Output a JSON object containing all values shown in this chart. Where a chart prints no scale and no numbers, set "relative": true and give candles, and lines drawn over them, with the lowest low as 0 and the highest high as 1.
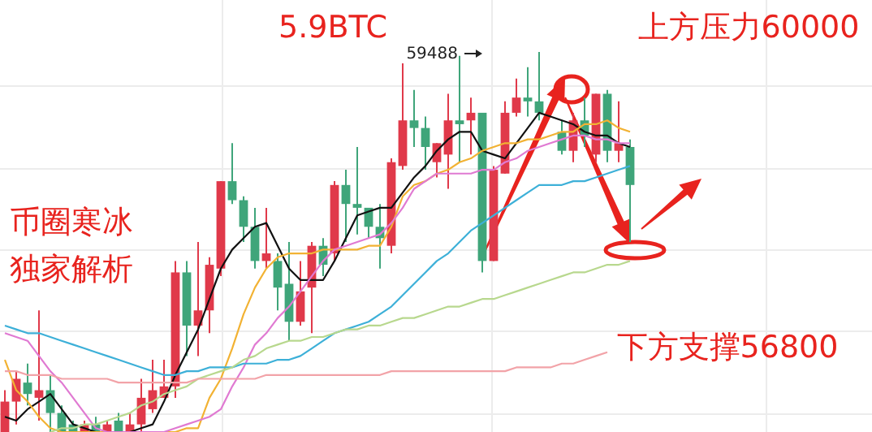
{
  "chart_data": {
    "type": "candlestick",
    "relative": true,
    "grid": true,
    "title": "5.9BTC",
    "annotations": [
      "59488",
      "上方压力60000",
      "币圈寒冰",
      "独家解析",
      "下方支撑56800"
    ],
    "categories": [
      null,
      null,
      null,
      null,
      null,
      null,
      null,
      null,
      null,
      null,
      null,
      null,
      null,
      null,
      null,
      null,
      null,
      null,
      null,
      null,
      null,
      null,
      null,
      null,
      null,
      null,
      null,
      null,
      null,
      null,
      null,
      null,
      null,
      null,
      null,
      null,
      null,
      null,
      null,
      null,
      null,
      null,
      null,
      null,
      null,
      null,
      null,
      null,
      null,
      null,
      null,
      null,
      null,
      null,
      null,
      null
    ],
    "ohlc": [
      [
        0,
        0.11,
        0,
        0.08
      ],
      [
        0.08,
        0.16,
        0.02,
        0.14
      ],
      [
        0.13,
        0.18,
        0.07,
        0.1
      ],
      [
        0.09,
        0.32,
        0.03,
        0.11
      ],
      [
        0.11,
        0.15,
        0,
        0.05
      ],
      [
        0.05,
        0.07,
        0,
        0
      ],
      [
        0.02,
        0.03,
        0,
        0
      ],
      [
        0,
        0.03,
        0,
        0.02
      ],
      [
        0.02,
        0.04,
        0,
        0
      ],
      [
        0,
        0.03,
        0,
        0.02
      ],
      [
        0.03,
        0.05,
        0,
        0
      ],
      [
        0,
        0.05,
        0,
        0.02
      ],
      [
        0.02,
        0.14,
        0,
        0.09
      ],
      [
        0.06,
        0.19,
        0.05,
        0.11
      ],
      [
        0.09,
        0.19,
        0.09,
        0.12
      ],
      [
        0.12,
        0.45,
        0.09,
        0.42
      ],
      [
        0.42,
        0.45,
        0.2,
        0.28
      ],
      [
        0.28,
        0.5,
        0.2,
        0.32
      ],
      [
        0.32,
        0.46,
        0.26,
        0.44
      ],
      [
        0.43,
        0.66,
        0.41,
        0.66
      ],
      [
        0.66,
        0.76,
        0.6,
        0.61
      ],
      [
        0.61,
        0.62,
        0.5,
        0.54
      ],
      [
        0.54,
        0.59,
        0.43,
        0.45
      ],
      [
        0.45,
        0.59,
        0.43,
        0.47
      ],
      [
        0.45,
        0.47,
        0.32,
        0.38
      ],
      [
        0.39,
        0.5,
        0.24,
        0.29
      ],
      [
        0.29,
        0.45,
        0.28,
        0.37
      ],
      [
        0.38,
        0.5,
        0.26,
        0.49
      ],
      [
        0.49,
        0.51,
        0.41,
        0.44
      ],
      [
        0.47,
        0.66,
        0.45,
        0.65
      ],
      [
        0.65,
        0.69,
        0.5,
        0.6
      ],
      [
        0.6,
        0.75,
        0.52,
        0.59
      ],
      [
        0.59,
        0.59,
        0.51,
        0.54
      ],
      [
        0.54,
        0.6,
        0.43,
        0.51
      ],
      [
        0.49,
        0.72,
        0.47,
        0.71
      ],
      [
        0.7,
        0.97,
        0.69,
        0.82
      ],
      [
        0.82,
        0.9,
        0.75,
        0.8
      ],
      [
        0.8,
        0.83,
        0.69,
        0.75
      ],
      [
        0.71,
        0.76,
        0.67,
        0.76
      ],
      [
        0.73,
        0.89,
        0.64,
        0.82
      ],
      [
        0.82,
        0.99,
        0.71,
        0.81
      ],
      [
        0.82,
        0.88,
        0.73,
        0.84
      ],
      [
        0.84,
        0.84,
        0.42,
        0.45
      ],
      [
        0.45,
        0.7,
        0.45,
        0.69
      ],
      [
        0.68,
        0.87,
        0.68,
        0.84
      ],
      [
        0.84,
        0.93,
        0.83,
        0.88
      ],
      [
        0.88,
        0.96,
        0.83,
        0.87
      ],
      [
        0.87,
        1,
        0.82,
        0.84
      ],
      null,
      [
        0.79,
        0.82,
        0.73,
        0.74
      ],
      [
        0.74,
        0.84,
        0.71,
        0.82
      ],
      [
        0.82,
        0.88,
        0.75,
        0.78
      ],
      [
        0.73,
        0.89,
        0.71,
        0.89
      ],
      [
        0.89,
        0.9,
        0.71,
        0.74
      ],
      [
        0.74,
        0.87,
        0.71,
        0.76
      ],
      [
        0.75,
        0.77,
        0.5,
        0.65
      ]
    ],
    "series": [
      {
        "type": "line",
        "color": "#111111",
        "values": [
          0.04,
          0.03,
          0.06,
          0.08,
          0.1,
          0.06,
          0.02,
          0.01,
          0,
          0,
          0,
          0,
          0.01,
          0.02,
          0.08,
          0.15,
          0.21,
          0.27,
          0.35,
          0.43,
          0.48,
          0.51,
          0.54,
          0.55,
          0.49,
          0.43,
          0.4,
          0.4,
          0.4,
          0.45,
          0.51,
          0.57,
          0.58,
          0.59,
          0.59,
          0.63,
          0.67,
          0.7,
          0.74,
          0.77,
          0.79,
          0.79,
          0.74,
          0.73,
          0.72,
          0.76,
          0.8,
          0.84,
          0.83,
          0.82,
          0.81,
          0.79,
          0.78,
          0.78,
          0.76,
          0.75
        ]
      },
      {
        "type": "line",
        "color": "#f2b233",
        "values": [
          0.19,
          0.11,
          0.08,
          0.04,
          0.01,
          0,
          0,
          0,
          0,
          0,
          0,
          0,
          0,
          0,
          0,
          0,
          0.01,
          0.01,
          0.09,
          0.14,
          0.22,
          0.31,
          0.38,
          0.43,
          0.46,
          0.47,
          0.47,
          0.47,
          0.48,
          0.48,
          0.48,
          0.48,
          0.49,
          0.49,
          0.54,
          0.62,
          0.65,
          0.66,
          0.68,
          0.69,
          0.71,
          0.72,
          0.74,
          0.75,
          0.76,
          0.76,
          0.77,
          0.77,
          0.78,
          0.79,
          0.79,
          0.81,
          0.81,
          0.82,
          0.8,
          0.79
        ]
      },
      {
        "type": "line",
        "color": "#e07ad2",
        "values": [
          0.26,
          0.25,
          0.24,
          0.2,
          0.16,
          0.13,
          0.09,
          0.05,
          0.01,
          0,
          0,
          0,
          0,
          0,
          0,
          0.01,
          0.02,
          0.03,
          0.04,
          0.06,
          0.12,
          0.17,
          0.23,
          0.26,
          0.3,
          0.33,
          0.37,
          0.41,
          0.45,
          0.48,
          0.49,
          0.5,
          0.51,
          0.52,
          0.55,
          0.59,
          0.64,
          0.66,
          0.68,
          0.68,
          0.68,
          0.68,
          0.69,
          0.69,
          0.71,
          0.72,
          0.74,
          0.75,
          0.76,
          0.77,
          0.78,
          0.78,
          0.77,
          0.77,
          0.76,
          0.76
        ]
      },
      {
        "type": "line",
        "color": "#3db0d8",
        "values": [
          0.28,
          0.27,
          0.26,
          0.26,
          0.25,
          0.24,
          0.23,
          0.22,
          0.21,
          0.2,
          0.19,
          0.18,
          0.17,
          0.16,
          0.15,
          0.15,
          0.16,
          0.16,
          0.17,
          0.17,
          0.17,
          0.18,
          0.18,
          0.18,
          0.19,
          0.19,
          0.2,
          0.22,
          0.24,
          0.26,
          0.27,
          0.28,
          0.29,
          0.31,
          0.33,
          0.36,
          0.39,
          0.42,
          0.45,
          0.47,
          0.5,
          0.53,
          0.55,
          0.57,
          0.59,
          0.61,
          0.63,
          0.65,
          0.65,
          0.65,
          0.66,
          0.66,
          0.67,
          0.68,
          0.69,
          0.7
        ]
      },
      {
        "type": "line",
        "color": "#b8d88e",
        "values": [
          null,
          null,
          null,
          null,
          0,
          0.01,
          0.01,
          0.02,
          0.02,
          0.03,
          0.04,
          0.05,
          0.07,
          0.08,
          0.1,
          0.11,
          0.12,
          0.14,
          0.15,
          0.16,
          0.17,
          0.19,
          0.2,
          0.22,
          0.23,
          0.24,
          0.24,
          0.25,
          0.25,
          0.26,
          0.27,
          0.27,
          0.28,
          0.28,
          0.29,
          0.3,
          0.3,
          0.31,
          0.32,
          0.33,
          0.33,
          0.34,
          0.35,
          0.35,
          0.36,
          0.37,
          0.38,
          0.39,
          0.4,
          0.41,
          0.42,
          0.42,
          0.43,
          0.44,
          0.44,
          0.45
        ]
      },
      {
        "type": "line",
        "color": "#f2a3a8",
        "values": [
          0.16,
          0.16,
          0.15,
          0.15,
          0.15,
          0.14,
          0.14,
          0.14,
          0.14,
          0.14,
          0.13,
          0.13,
          0.13,
          0.13,
          0.13,
          0.13,
          0.13,
          0.14,
          0.14,
          0.14,
          0.14,
          0.14,
          0.14,
          0.15,
          0.15,
          0.15,
          0.15,
          0.15,
          0.15,
          0.15,
          0.15,
          0.15,
          0.15,
          0.15,
          0.16,
          0.16,
          0.16,
          0.16,
          0.16,
          0.16,
          0.16,
          0.16,
          0.16,
          0.16,
          0.16,
          0.17,
          0.17,
          0.17,
          0.17,
          0.18,
          0.18,
          0.19,
          0.2,
          0.21,
          null,
          null
        ]
      }
    ]
  }
}
